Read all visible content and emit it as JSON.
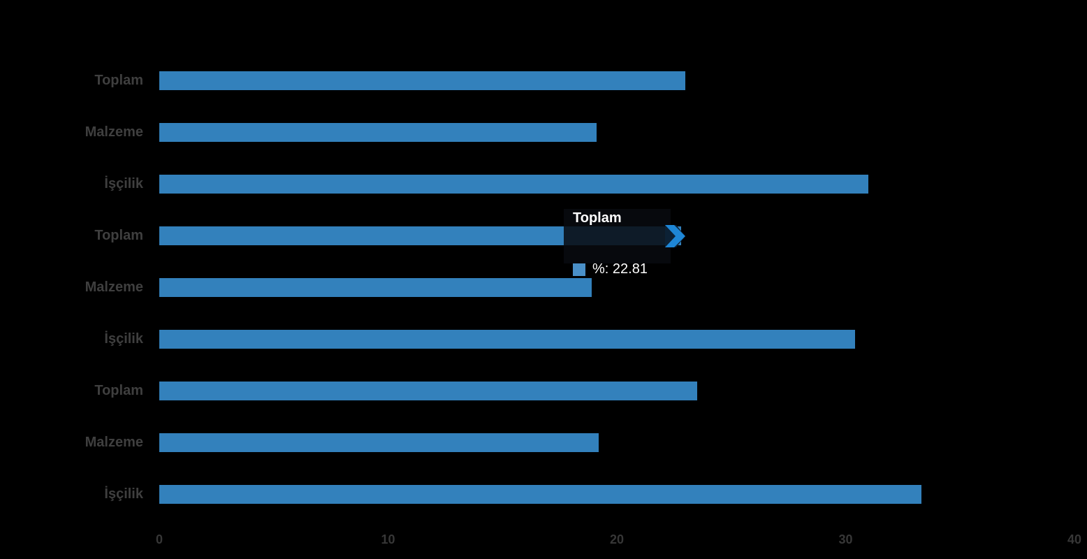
{
  "chart_data": {
    "type": "bar",
    "orientation": "horizontal",
    "title": "",
    "xlabel": "",
    "ylabel": "",
    "categories": [
      "Toplam",
      "Malzeme",
      "İşçilik",
      "Toplam",
      "Malzeme",
      "İşçilik",
      "Toplam",
      "Malzeme",
      "İşçilik"
    ],
    "values": [
      23.0,
      19.1,
      31.0,
      22.81,
      18.9,
      30.4,
      23.5,
      19.2,
      33.3
    ],
    "series_name": "%",
    "xlim": [
      0,
      40
    ],
    "x_ticks": [
      0,
      10,
      20,
      30,
      40
    ],
    "grid": false,
    "legend_position": "none",
    "highlighted_index": 3,
    "colors": {
      "background": "#000000",
      "bar": "#3381BC",
      "category_label": "#3f3f3f",
      "tick_label": "#373737",
      "tooltip_background": "rgba(8,11,15,0.86)",
      "tooltip_text": "#ffffff",
      "tooltip_swatch": "#4A90C8",
      "callout_arrow": "#1E86D6"
    }
  },
  "tooltip": {
    "title": "Toplam",
    "value_label": "%: 22.81"
  }
}
